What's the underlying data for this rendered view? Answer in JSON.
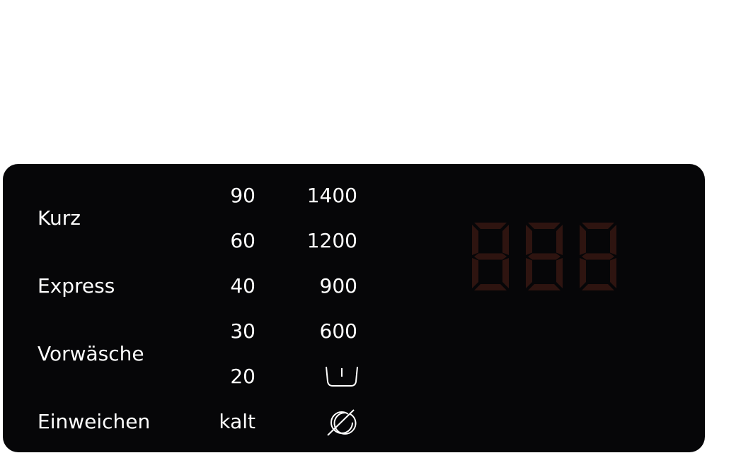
{
  "programs": [
    "Kurz",
    "Express",
    "Vorwäsche",
    "Einweichen"
  ],
  "temperatures": [
    "90",
    "60",
    "40",
    "30",
    "20",
    "kalt"
  ],
  "spin_speeds": [
    "1400",
    "1200",
    "900",
    "600"
  ],
  "spin_icons": [
    "rinse-hold-icon",
    "no-spin-icon"
  ],
  "display": {
    "digits": [
      "8",
      "8",
      "8"
    ],
    "lit": false,
    "segment_color": "#2e1410"
  },
  "colors": {
    "panel": "#060608",
    "text": "#ffffff"
  }
}
